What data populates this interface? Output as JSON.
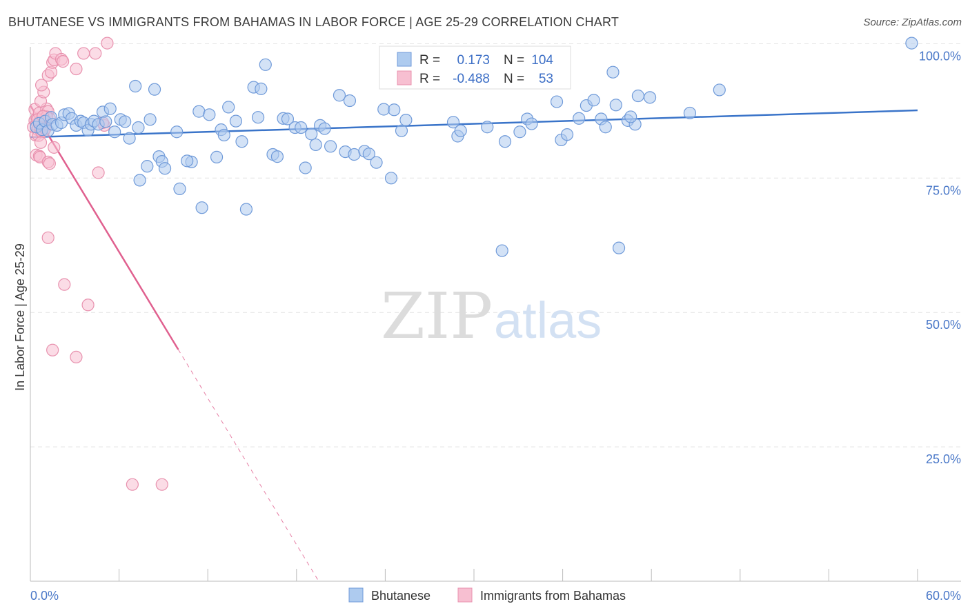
{
  "title": "BHUTANESE VS IMMIGRANTS FROM BAHAMAS IN LABOR FORCE | AGE 25-29 CORRELATION CHART",
  "source": "Source: ZipAtlas.com",
  "watermark": {
    "zip": "ZIP",
    "atlas": "atlas"
  },
  "chart_data": {
    "type": "scatter",
    "title": "BHUTANESE VS IMMIGRANTS FROM BAHAMAS IN LABOR FORCE | AGE 25-29 CORRELATION CHART",
    "ylabel": "In Labor Force | Age 25-29",
    "xlabel": "",
    "xlim": [
      0,
      60
    ],
    "ylim": [
      0,
      103
    ],
    "x_tick_labels": {
      "left": "0.0%",
      "right": "60.0%"
    },
    "y_ticks": [
      {
        "value": 100,
        "label": "100.0%"
      },
      {
        "value": 75,
        "label": "75.0%"
      },
      {
        "value": 50,
        "label": "50.0%"
      },
      {
        "value": 25,
        "label": "25.0%"
      }
    ],
    "legend_position": "top-center",
    "stats": [
      {
        "r_label": "R =",
        "r": "0.173",
        "n_label": "N =",
        "n": "104"
      },
      {
        "r_label": "R =",
        "r": "-0.488",
        "n_label": "N =",
        "n": "53"
      }
    ],
    "colors": {
      "blue_fill": "#aecbef",
      "blue_stroke": "#6f9ad9",
      "blue_line": "#3a74c9",
      "pink_fill": "#f7bfd1",
      "pink_stroke": "#e891ae",
      "pink_line": "#e0608f",
      "grid": "#e3e3e3",
      "axis": "#bbbbbb",
      "tick_text": "#4a78c8"
    },
    "series": [
      {
        "name": "Bhutanese",
        "trend": {
          "x1": 0,
          "y1": 82.6,
          "x2": 60,
          "y2": 87.6,
          "dashed_from": null
        },
        "points": [
          [
            0.4,
            84.5
          ],
          [
            0.6,
            85.2
          ],
          [
            0.8,
            84.0
          ],
          [
            1.0,
            85.6
          ],
          [
            1.2,
            83.8
          ],
          [
            1.4,
            86.3
          ],
          [
            1.5,
            85.0
          ],
          [
            1.8,
            84.8
          ],
          [
            2.1,
            85.3
          ],
          [
            2.3,
            86.8
          ],
          [
            2.6,
            87.0
          ],
          [
            2.8,
            86.1
          ],
          [
            3.1,
            84.8
          ],
          [
            3.4,
            85.6
          ],
          [
            3.6,
            85.3
          ],
          [
            3.9,
            83.9
          ],
          [
            4.1,
            85.0
          ],
          [
            4.3,
            85.6
          ],
          [
            4.6,
            85.0
          ],
          [
            4.9,
            87.3
          ],
          [
            5.1,
            85.5
          ],
          [
            5.4,
            87.9
          ],
          [
            5.7,
            83.6
          ],
          [
            6.1,
            85.9
          ],
          [
            6.4,
            85.5
          ],
          [
            6.7,
            82.4
          ],
          [
            7.1,
            92.1
          ],
          [
            7.3,
            84.4
          ],
          [
            7.4,
            74.6
          ],
          [
            7.9,
            77.2
          ],
          [
            8.1,
            85.9
          ],
          [
            8.4,
            91.5
          ],
          [
            8.7,
            79.0
          ],
          [
            8.9,
            78.1
          ],
          [
            9.1,
            76.8
          ],
          [
            9.9,
            83.6
          ],
          [
            10.1,
            73.0
          ],
          [
            10.9,
            78.0
          ],
          [
            10.6,
            78.2
          ],
          [
            11.4,
            87.4
          ],
          [
            11.6,
            69.5
          ],
          [
            12.1,
            86.8
          ],
          [
            12.6,
            78.9
          ],
          [
            12.9,
            84.0
          ],
          [
            13.1,
            83.0
          ],
          [
            13.4,
            88.2
          ],
          [
            13.9,
            85.6
          ],
          [
            14.3,
            81.8
          ],
          [
            14.6,
            69.2
          ],
          [
            15.1,
            91.9
          ],
          [
            15.6,
            91.6
          ],
          [
            15.4,
            86.3
          ],
          [
            15.9,
            96.1
          ],
          [
            16.4,
            79.4
          ],
          [
            16.7,
            79.0
          ],
          [
            17.1,
            86.1
          ],
          [
            17.4,
            86.0
          ],
          [
            17.9,
            84.4
          ],
          [
            18.3,
            84.4
          ],
          [
            18.6,
            76.9
          ],
          [
            19.0,
            83.2
          ],
          [
            19.3,
            81.2
          ],
          [
            19.6,
            84.8
          ],
          [
            19.9,
            84.2
          ],
          [
            20.3,
            80.9
          ],
          [
            20.9,
            90.4
          ],
          [
            21.3,
            79.9
          ],
          [
            21.6,
            89.4
          ],
          [
            21.9,
            79.4
          ],
          [
            22.6,
            80.0
          ],
          [
            22.9,
            79.5
          ],
          [
            23.4,
            77.9
          ],
          [
            23.9,
            87.8
          ],
          [
            24.4,
            75.0
          ],
          [
            24.6,
            87.7
          ],
          [
            25.1,
            83.8
          ],
          [
            25.4,
            85.8
          ],
          [
            26.8,
            96.2
          ],
          [
            28.6,
            85.4
          ],
          [
            28.9,
            82.8
          ],
          [
            29.1,
            83.8
          ],
          [
            29.9,
            96.3
          ],
          [
            30.1,
            93.5
          ],
          [
            30.9,
            84.5
          ],
          [
            31.9,
            61.5
          ],
          [
            32.1,
            81.8
          ],
          [
            33.1,
            83.6
          ],
          [
            33.6,
            86.0
          ],
          [
            33.9,
            85.1
          ],
          [
            35.6,
            89.2
          ],
          [
            35.9,
            82.1
          ],
          [
            36.3,
            83.1
          ],
          [
            37.1,
            86.1
          ],
          [
            37.6,
            88.5
          ],
          [
            38.1,
            89.5
          ],
          [
            38.6,
            86.0
          ],
          [
            38.9,
            84.5
          ],
          [
            39.6,
            88.6
          ],
          [
            39.4,
            94.7
          ],
          [
            39.8,
            62.0
          ],
          [
            41.1,
            90.3
          ],
          [
            41.9,
            90.0
          ],
          [
            44.6,
            87.1
          ],
          [
            46.6,
            91.4
          ],
          [
            40.4,
            85.7
          ],
          [
            40.9,
            85.0
          ],
          [
            40.6,
            86.4
          ],
          [
            59.6,
            100.1
          ]
        ]
      },
      {
        "name": "Immigrants from Bahamas",
        "trend": {
          "x1": 0,
          "y1": 88.5,
          "x2": 19.5,
          "y2": 0,
          "dashed_from": 10.0
        },
        "points": [
          [
            0.2,
            84.5
          ],
          [
            0.3,
            85.7
          ],
          [
            0.35,
            83.0
          ],
          [
            0.4,
            84.9
          ],
          [
            0.45,
            86.2
          ],
          [
            0.5,
            84.0
          ],
          [
            0.55,
            82.9
          ],
          [
            0.6,
            85.5
          ],
          [
            0.7,
            84.1
          ],
          [
            0.75,
            83.6
          ],
          [
            0.8,
            84.8
          ],
          [
            0.9,
            83.7
          ],
          [
            0.95,
            85.1
          ],
          [
            1.0,
            84.2
          ],
          [
            0.3,
            87.8
          ],
          [
            0.6,
            87.1
          ],
          [
            1.1,
            87.9
          ],
          [
            1.2,
            87.4
          ],
          [
            0.4,
            79.3
          ],
          [
            0.6,
            79.1
          ],
          [
            0.65,
            78.9
          ],
          [
            0.7,
            81.6
          ],
          [
            1.2,
            78.0
          ],
          [
            1.3,
            77.7
          ],
          [
            1.6,
            80.7
          ],
          [
            0.7,
            89.3
          ],
          [
            0.9,
            91.0
          ],
          [
            0.75,
            92.3
          ],
          [
            1.2,
            94.1
          ],
          [
            1.4,
            94.7
          ],
          [
            1.5,
            96.5
          ],
          [
            1.6,
            97.0
          ],
          [
            1.7,
            98.2
          ],
          [
            2.1,
            97.1
          ],
          [
            2.2,
            96.7
          ],
          [
            3.1,
            95.3
          ],
          [
            3.6,
            98.2
          ],
          [
            4.4,
            98.2
          ],
          [
            5.2,
            100.1
          ],
          [
            4.6,
            76.0
          ],
          [
            1.2,
            63.9
          ],
          [
            2.3,
            55.2
          ],
          [
            3.9,
            51.4
          ],
          [
            1.5,
            43.0
          ],
          [
            3.1,
            41.7
          ],
          [
            6.9,
            18.0
          ],
          [
            8.9,
            18.0
          ],
          [
            5.0,
            84.8
          ],
          [
            4.9,
            85.3
          ],
          [
            1.3,
            86.1
          ],
          [
            1.1,
            86.4
          ],
          [
            0.5,
            85.9
          ],
          [
            0.85,
            86.5
          ]
        ]
      }
    ]
  },
  "legend": {
    "items": [
      "Bhutanese",
      "Immigrants from Bahamas"
    ]
  }
}
